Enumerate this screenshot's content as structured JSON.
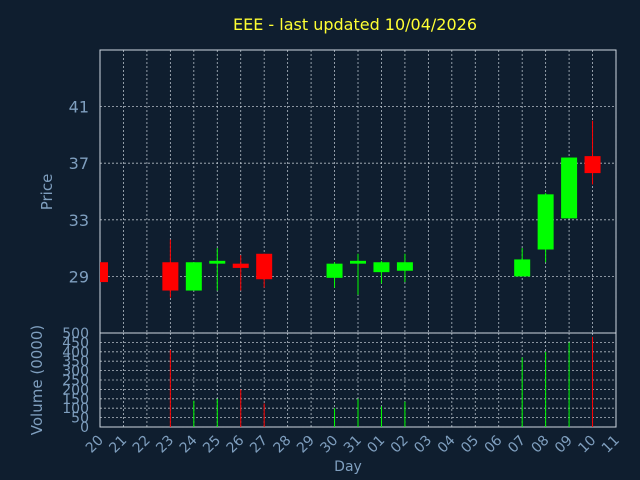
{
  "chart_data": {
    "type": "candlestick",
    "title": "EEE - last updated 10/04/2026",
    "colors": {
      "background": "#0f1e2f",
      "up": "#00ff00",
      "down": "#ff0000",
      "title": "#ffff33",
      "text": "#7f9fbf",
      "grid": "#cfd8e0"
    },
    "price_panel": {
      "ylabel": "Price",
      "ylim": [
        25,
        45
      ],
      "yticks": [
        29,
        33,
        37,
        41
      ]
    },
    "volume_panel": {
      "ylabel": "Volume (0000)",
      "ylim": [
        0,
        500
      ],
      "yticks": [
        0,
        50,
        100,
        150,
        200,
        250,
        300,
        350,
        400,
        450,
        500
      ]
    },
    "xlabel": "Day",
    "x_ticks": [
      "20",
      "21",
      "22",
      "23",
      "24",
      "25",
      "26",
      "27",
      "28",
      "29",
      "30",
      "31",
      "01",
      "02",
      "03",
      "04",
      "05",
      "06",
      "07",
      "08",
      "09",
      "10",
      "11"
    ],
    "candles": [
      {
        "day": "20",
        "open": 30.0,
        "high": 30.0,
        "low": 28.6,
        "close": 28.6,
        "volume": 0
      },
      {
        "day": "23",
        "open": 30.0,
        "high": 31.6,
        "low": 27.5,
        "close": 28.0,
        "volume": 410
      },
      {
        "day": "24",
        "open": 28.0,
        "high": 30.0,
        "low": 28.0,
        "close": 30.0,
        "volume": 140
      },
      {
        "day": "25",
        "open": 29.9,
        "high": 31.0,
        "low": 28.0,
        "close": 30.1,
        "volume": 150
      },
      {
        "day": "26",
        "open": 29.9,
        "high": 30.5,
        "low": 28.0,
        "close": 29.6,
        "volume": 200
      },
      {
        "day": "27",
        "open": 30.6,
        "high": 30.6,
        "low": 28.2,
        "close": 28.8,
        "volume": 125
      },
      {
        "day": "30",
        "open": 28.9,
        "high": 30.0,
        "low": 28.2,
        "close": 29.9,
        "volume": 100
      },
      {
        "day": "31",
        "open": 29.9,
        "high": 30.6,
        "low": 27.7,
        "close": 30.1,
        "volume": 150
      },
      {
        "day": "01",
        "open": 29.3,
        "high": 30.1,
        "low": 28.5,
        "close": 30.0,
        "volume": 110
      },
      {
        "day": "02",
        "open": 29.4,
        "high": 30.6,
        "low": 28.6,
        "close": 30.0,
        "volume": 135
      },
      {
        "day": "07",
        "open": 29.0,
        "high": 31.0,
        "low": 29.0,
        "close": 30.2,
        "volume": 370
      },
      {
        "day": "08",
        "open": 30.9,
        "high": 34.9,
        "low": 30.0,
        "close": 34.8,
        "volume": 400
      },
      {
        "day": "09",
        "open": 33.1,
        "high": 37.4,
        "low": 33.1,
        "close": 37.4,
        "volume": 450
      },
      {
        "day": "10",
        "open": 37.5,
        "high": 40.0,
        "low": 35.5,
        "close": 36.3,
        "volume": 480
      }
    ]
  }
}
